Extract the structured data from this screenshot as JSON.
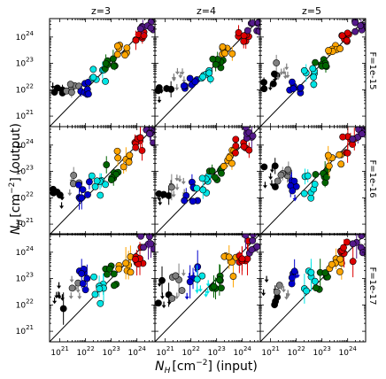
{
  "figure": {
    "xlabel_symbol": "N",
    "xlabel_sub": "H",
    "xlabel_unit": "[cm",
    "xlabel_unit_exp": "−2",
    "xlabel_unit_close": "]",
    "xlabel_suffix": "(input)",
    "ylabel_symbol": "N",
    "ylabel_sub": "H",
    "ylabel_unit": "[cm",
    "ylabel_unit_exp": "−2",
    "ylabel_unit_close": "]",
    "ylabel_suffix": "(output)",
    "column_titles": [
      "z=3",
      "z=4",
      "z=5"
    ],
    "row_labels": [
      "F=1e-15",
      "F=1e-16",
      "F=1e-17"
    ],
    "x_tick_labels": [
      {
        "base": "10",
        "exp": "21",
        "value": 21
      },
      {
        "base": "10",
        "exp": "22",
        "value": 22
      },
      {
        "base": "10",
        "exp": "23",
        "value": 23
      },
      {
        "base": "10",
        "exp": "24",
        "value": 24
      }
    ],
    "y_tick_labels": [
      {
        "base": "10",
        "exp": "21",
        "value": 21
      },
      {
        "base": "10",
        "exp": "22",
        "value": 22
      },
      {
        "base": "10",
        "exp": "23",
        "value": 23
      },
      {
        "base": "10",
        "exp": "24",
        "value": 24
      }
    ]
  },
  "chart_data": {
    "type": "scatter",
    "x_scale": "log",
    "y_scale": "log",
    "xlim_log10": [
      20.6,
      24.7
    ],
    "ylim_log10": [
      20.6,
      24.7
    ],
    "one_to_one_line": true,
    "grid": false,
    "groups": [
      {
        "input_log10": 21.0,
        "color": "#000000"
      },
      {
        "input_log10": 21.5,
        "color": "#808080"
      },
      {
        "input_log10": 22.0,
        "color": "#0000cd"
      },
      {
        "input_log10": 22.5,
        "color": "#00e5e5"
      },
      {
        "input_log10": 23.0,
        "color": "#006400"
      },
      {
        "input_log10": 23.5,
        "color": "#ffa500"
      },
      {
        "input_log10": 24.0,
        "color": "#dd0000"
      },
      {
        "input_log10": 24.4,
        "color": "#551a8b"
      }
    ],
    "panels": [
      {
        "row": 0,
        "col": 0,
        "medians_log10": [
          21.9,
          22.1,
          22.0,
          22.5,
          23.0,
          23.5,
          24.0,
          24.4
        ]
      },
      {
        "row": 0,
        "col": 1,
        "medians_log10": [
          21.9,
          22.4,
          22.2,
          22.5,
          23.0,
          23.5,
          24.0,
          24.4
        ]
      },
      {
        "row": 0,
        "col": 2,
        "medians_log10": [
          22.3,
          22.8,
          22.2,
          22.5,
          23.0,
          23.5,
          24.0,
          24.4
        ]
      },
      {
        "row": 1,
        "col": 0,
        "medians_log10": [
          22.0,
          22.6,
          22.2,
          22.4,
          23.0,
          23.5,
          24.0,
          24.4
        ]
      },
      {
        "row": 1,
        "col": 1,
        "medians_log10": [
          22.2,
          22.6,
          22.2,
          22.5,
          23.0,
          23.5,
          24.0,
          24.4
        ]
      },
      {
        "row": 1,
        "col": 2,
        "medians_log10": [
          22.8,
          22.7,
          22.3,
          22.4,
          22.9,
          23.5,
          24.0,
          24.4
        ]
      },
      {
        "row": 2,
        "col": 0,
        "medians_log10": [
          22.3,
          22.7,
          22.9,
          22.6,
          23.1,
          23.5,
          24.0,
          24.4
        ]
      },
      {
        "row": 2,
        "col": 1,
        "medians_log10": [
          22.4,
          22.8,
          22.9,
          22.9,
          22.9,
          23.5,
          24.0,
          24.4
        ]
      },
      {
        "row": 2,
        "col": 2,
        "medians_log10": [
          22.5,
          22.6,
          22.8,
          22.9,
          22.9,
          23.4,
          24.0,
          24.4
        ]
      }
    ]
  }
}
